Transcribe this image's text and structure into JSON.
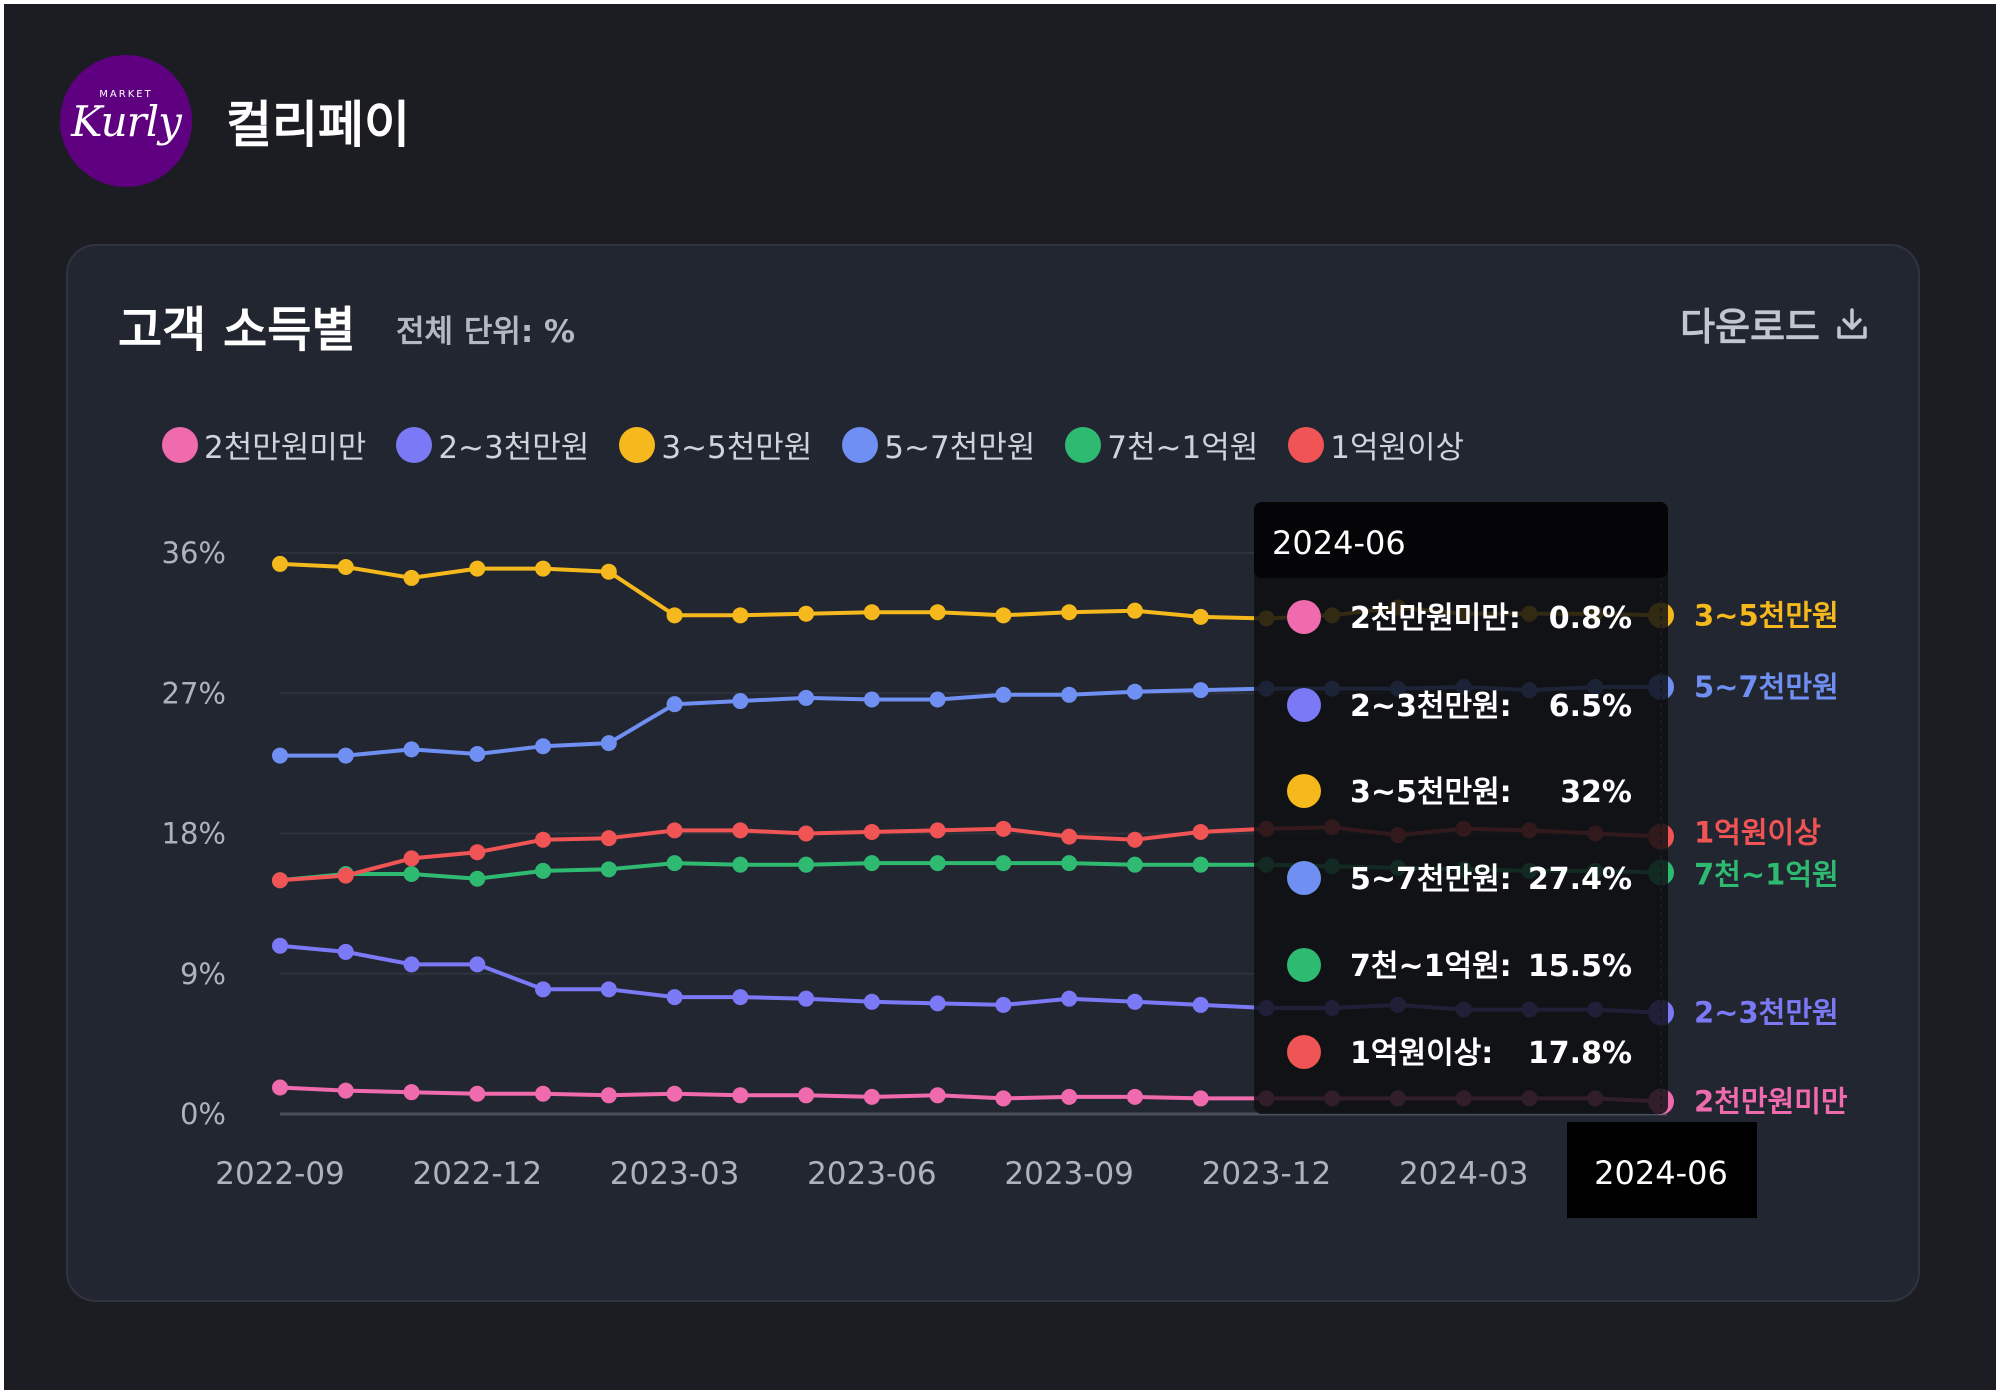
{
  "brand": {
    "name": "컬리페이",
    "logo_text": "Kurly",
    "logo_sub": "MARKET"
  },
  "card": {
    "title": "고객 소득별",
    "subtitle": "전체 단위: %",
    "download_label": "다운로드"
  },
  "tooltip": {
    "date": "2024-06",
    "items": [
      {
        "label": "2천만원미만:",
        "value": "0.8%"
      },
      {
        "label": "2~3천만원:",
        "value": "6.5%"
      },
      {
        "label": "3~5천만원:",
        "value": "32%"
      },
      {
        "label": "5~7천만원:",
        "value": "27.4%"
      },
      {
        "label": "7천~1억원:",
        "value": "15.5%"
      },
      {
        "label": "1억원이상:",
        "value": "17.8%"
      }
    ]
  },
  "chart_data": {
    "type": "line",
    "title": "고객 소득별",
    "subtitle": "전체 단위: %",
    "ylim": [
      0,
      36
    ],
    "yticks": [
      "0%",
      "9%",
      "18%",
      "27%",
      "36%"
    ],
    "grid": true,
    "legend_position": "top-left",
    "x": [
      "2022-09",
      "2022-10",
      "2022-11",
      "2022-12",
      "2023-01",
      "2023-02",
      "2023-03",
      "2023-04",
      "2023-05",
      "2023-06",
      "2023-07",
      "2023-08",
      "2023-09",
      "2023-10",
      "2023-11",
      "2023-12",
      "2024-01",
      "2024-02",
      "2024-03",
      "2024-04",
      "2024-05",
      "2024-06"
    ],
    "xticks": [
      "2022-09",
      "2022-12",
      "2023-03",
      "2023-06",
      "2023-09",
      "2023-12",
      "2024-03",
      "2024-06"
    ],
    "highlight_x": "2024-06",
    "series": [
      {
        "name": "2천만원미만",
        "color": "#f06aae",
        "values": [
          1.7,
          1.5,
          1.4,
          1.3,
          1.3,
          1.2,
          1.3,
          1.2,
          1.2,
          1.1,
          1.2,
          1.0,
          1.1,
          1.1,
          1.0,
          1.0,
          1.0,
          1.0,
          1.0,
          1.0,
          1.0,
          0.8
        ]
      },
      {
        "name": "2~3천만원",
        "color": "#7b79f5",
        "values": [
          10.8,
          10.4,
          9.6,
          9.6,
          8.0,
          8.0,
          7.5,
          7.5,
          7.4,
          7.2,
          7.1,
          7.0,
          7.4,
          7.2,
          7.0,
          6.8,
          6.8,
          7.0,
          6.7,
          6.7,
          6.7,
          6.5
        ]
      },
      {
        "name": "3~5천만원",
        "color": "#f5b91d",
        "values": [
          35.3,
          35.1,
          34.4,
          35.0,
          35.0,
          34.8,
          32.0,
          32.0,
          32.1,
          32.2,
          32.2,
          32.0,
          32.2,
          32.3,
          31.9,
          31.8,
          32.0,
          32.5,
          32.1,
          32.1,
          32.1,
          32.0
        ]
      },
      {
        "name": "5~7천만원",
        "color": "#6f8ff2",
        "values": [
          23.0,
          23.0,
          23.4,
          23.1,
          23.6,
          23.8,
          26.3,
          26.5,
          26.7,
          26.6,
          26.6,
          26.9,
          26.9,
          27.1,
          27.2,
          27.3,
          27.3,
          27.3,
          27.4,
          27.2,
          27.4,
          27.4
        ]
      },
      {
        "name": "7천~1억원",
        "color": "#2fba72",
        "values": [
          15.0,
          15.4,
          15.4,
          15.1,
          15.6,
          15.7,
          16.1,
          16.0,
          16.0,
          16.1,
          16.1,
          16.1,
          16.1,
          16.0,
          16.0,
          16.0,
          15.9,
          15.8,
          15.7,
          15.6,
          15.6,
          15.5
        ]
      },
      {
        "name": "1억원이상",
        "color": "#f05454",
        "values": [
          15.0,
          15.3,
          16.4,
          16.8,
          17.6,
          17.7,
          18.2,
          18.2,
          18.0,
          18.1,
          18.2,
          18.3,
          17.8,
          17.6,
          18.1,
          18.3,
          18.4,
          17.9,
          18.3,
          18.2,
          18.0,
          17.8
        ]
      }
    ]
  }
}
